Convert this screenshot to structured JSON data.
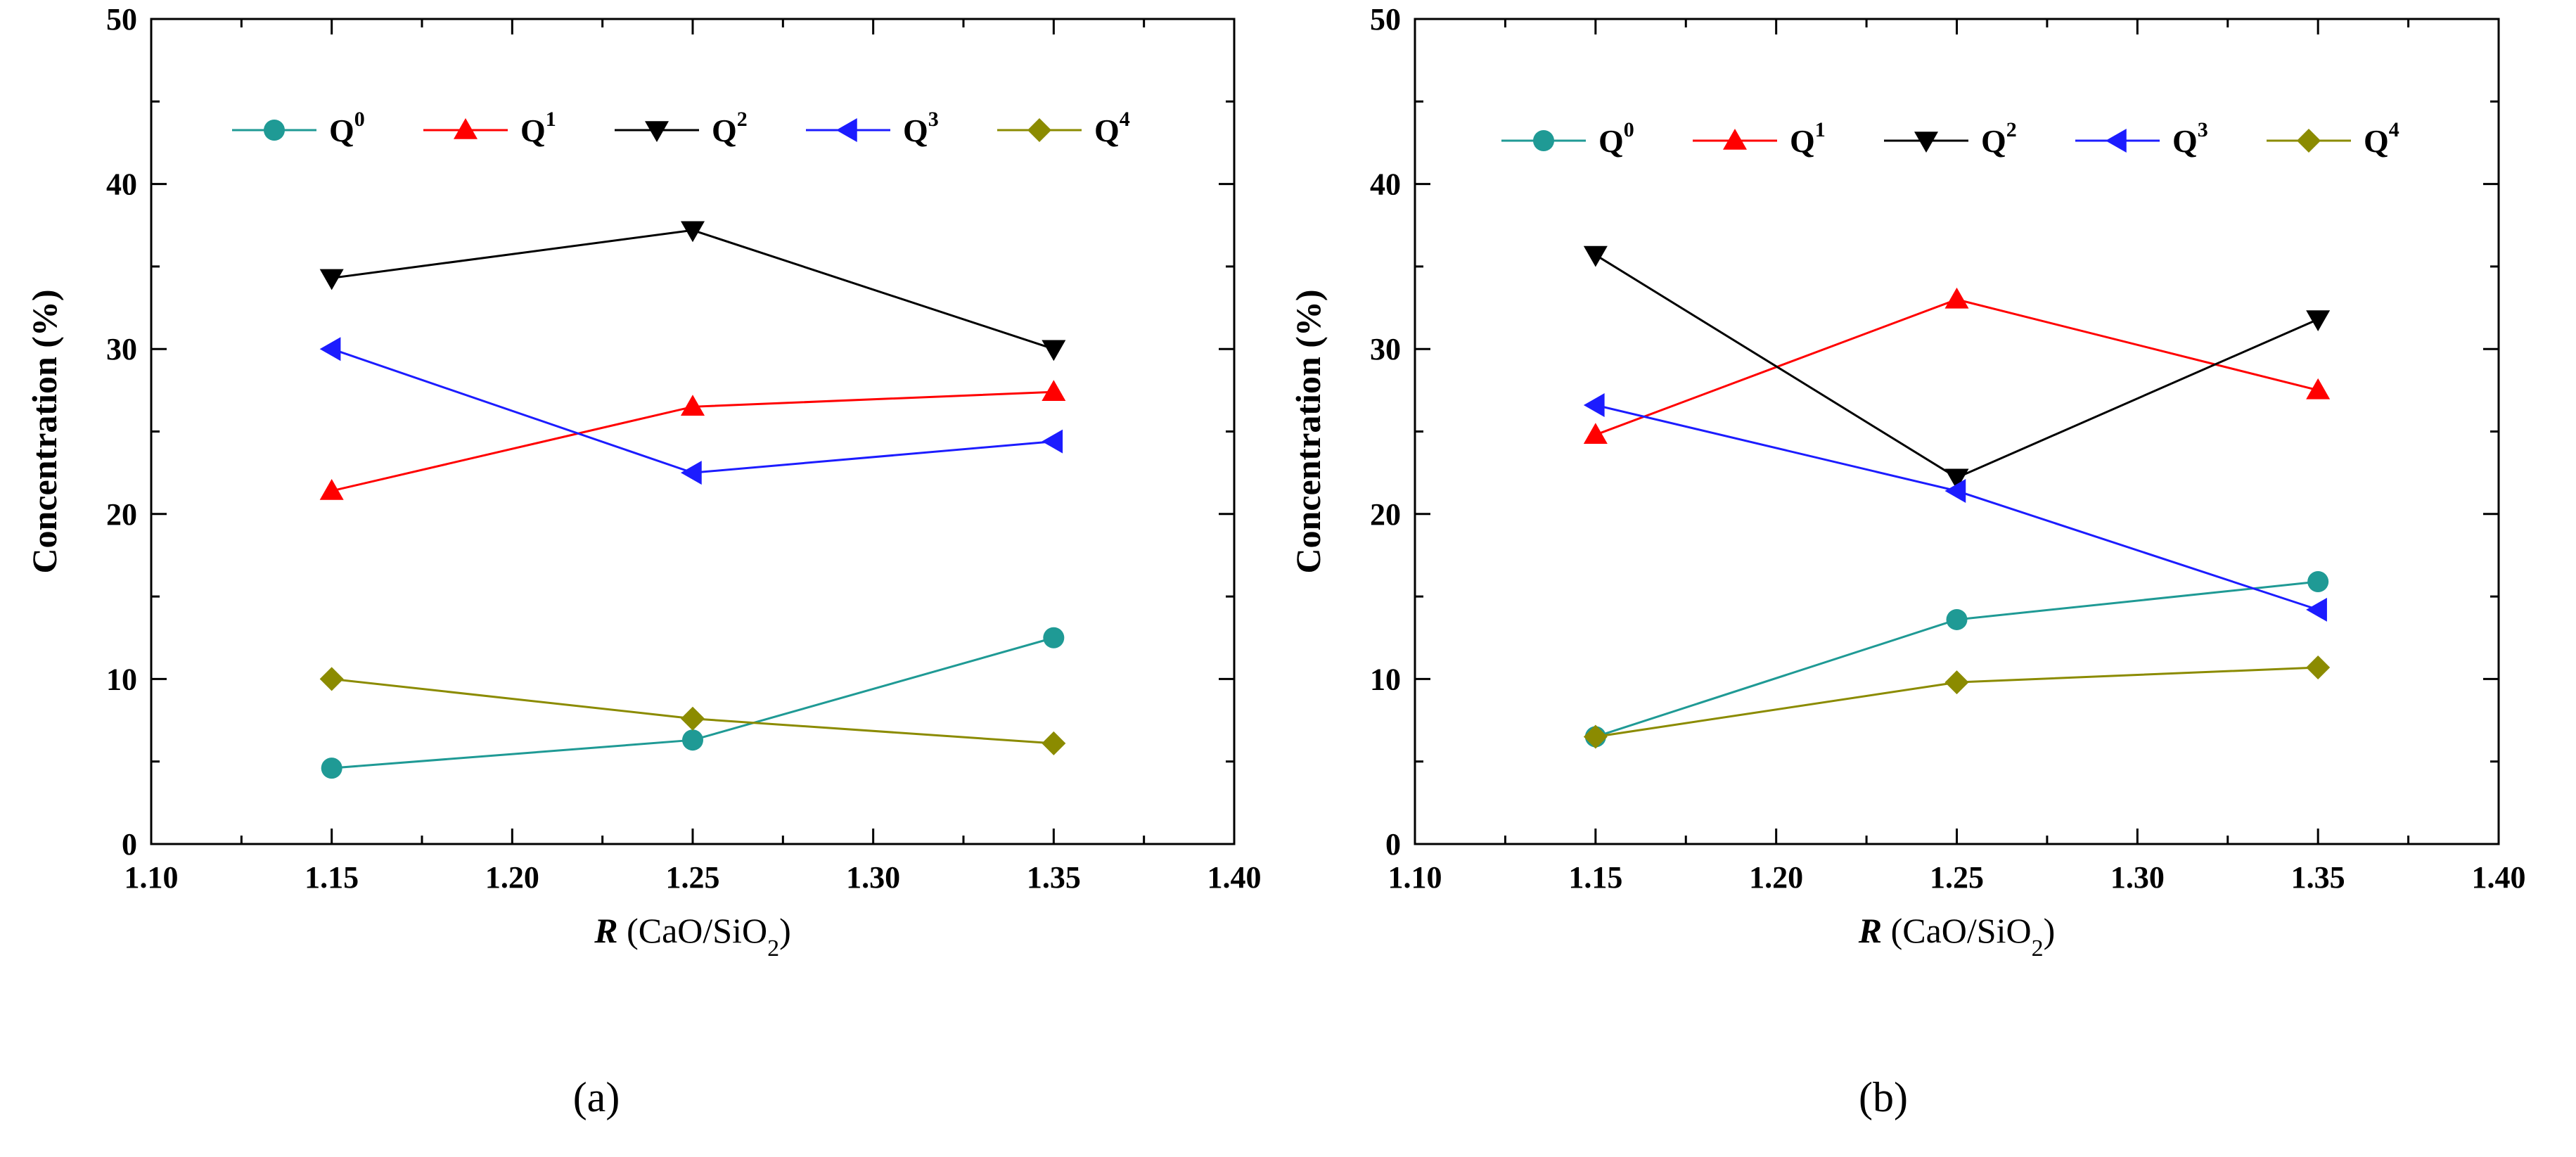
{
  "chart_data": [
    {
      "type": "line",
      "panel_label": "(a)",
      "x": [
        1.15,
        1.25,
        1.35
      ],
      "series": [
        {
          "name": "Q",
          "sup": "0",
          "color": "#1f9a95",
          "marker": "circle",
          "values": [
            4.6,
            6.3,
            12.5
          ]
        },
        {
          "name": "Q",
          "sup": "1",
          "color": "#ff0000",
          "marker": "triangle-up",
          "values": [
            21.4,
            26.5,
            27.4
          ]
        },
        {
          "name": "Q",
          "sup": "2",
          "color": "#000000",
          "marker": "triangle-down",
          "values": [
            34.3,
            37.2,
            30.0
          ]
        },
        {
          "name": "Q",
          "sup": "3",
          "color": "#1c1cff",
          "marker": "triangle-left",
          "values": [
            30.0,
            22.5,
            24.4
          ]
        },
        {
          "name": "Q",
          "sup": "4",
          "color": "#8b8b00",
          "marker": "diamond",
          "values": [
            10.0,
            7.6,
            6.1
          ]
        }
      ],
      "xlabel_italic": "R",
      "xlabel_rest": " (CaO/SiO",
      "xlabel_sub": "2",
      "xlabel_end": ")",
      "ylabel": "Concentration (%)",
      "xlim": [
        1.1,
        1.4
      ],
      "ylim": [
        0,
        50
      ],
      "xticks": [
        "1.10",
        "1.15",
        "1.20",
        "1.25",
        "1.30",
        "1.35",
        "1.40"
      ],
      "yticks": [
        "0",
        "10",
        "20",
        "30",
        "40",
        "50"
      ],
      "legend_position": "top"
    },
    {
      "type": "line",
      "panel_label": "(b)",
      "x": [
        1.15,
        1.25,
        1.35
      ],
      "series": [
        {
          "name": "Q",
          "sup": "0",
          "color": "#1f9a95",
          "marker": "circle",
          "values": [
            6.5,
            13.6,
            15.9
          ]
        },
        {
          "name": "Q",
          "sup": "1",
          "color": "#ff0000",
          "marker": "triangle-up",
          "values": [
            24.8,
            33.0,
            27.5
          ]
        },
        {
          "name": "Q",
          "sup": "2",
          "color": "#000000",
          "marker": "triangle-down",
          "values": [
            35.7,
            22.2,
            31.8
          ]
        },
        {
          "name": "Q",
          "sup": "3",
          "color": "#1c1cff",
          "marker": "triangle-left",
          "values": [
            26.6,
            21.4,
            14.2
          ]
        },
        {
          "name": "Q",
          "sup": "4",
          "color": "#8b8b00",
          "marker": "diamond",
          "values": [
            6.5,
            9.8,
            10.7
          ]
        }
      ],
      "xlabel_italic": "R",
      "xlabel_rest": " (CaO/SiO",
      "xlabel_sub": "2",
      "xlabel_end": ")",
      "ylabel": "Concentration (%)",
      "xlim": [
        1.1,
        1.4
      ],
      "ylim": [
        0,
        50
      ],
      "xticks": [
        "1.10",
        "1.15",
        "1.20",
        "1.25",
        "1.30",
        "1.35",
        "1.40"
      ],
      "yticks": [
        "0",
        "10",
        "20",
        "30",
        "40",
        "50"
      ],
      "legend_position": "top"
    }
  ]
}
